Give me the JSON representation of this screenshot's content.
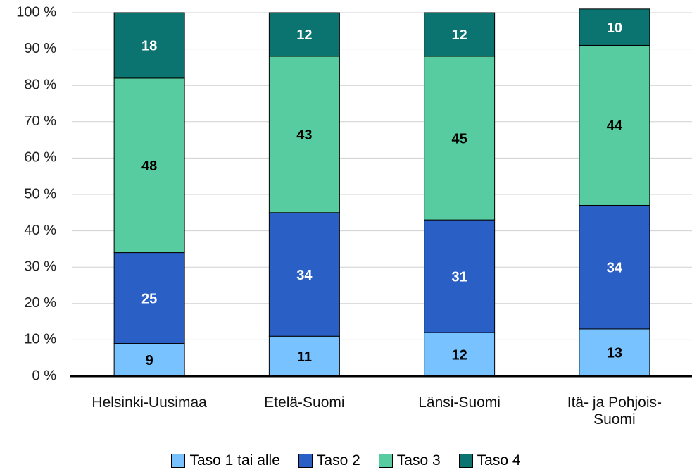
{
  "chart_data": {
    "type": "stacked_bar",
    "categories": [
      "Helsinki-Uusimaa",
      "Etelä-Suomi",
      "Länsi-Suomi",
      "Itä- ja Pohjois-Suomi"
    ],
    "series": [
      {
        "name": "Taso 1 tai alle",
        "color": "#78c2ff",
        "values": [
          9,
          11,
          12,
          13
        ]
      },
      {
        "name": "Taso 2",
        "color": "#2a5fc6",
        "values": [
          25,
          34,
          31,
          34
        ]
      },
      {
        "name": "Taso 3",
        "color": "#57cca0",
        "values": [
          48,
          43,
          45,
          44
        ]
      },
      {
        "name": "Taso 4",
        "color": "#0b7370",
        "values": [
          18,
          12,
          12,
          10
        ]
      }
    ],
    "ylim": [
      0,
      100
    ],
    "yticks": [
      {
        "value": 0,
        "label": "0 %"
      },
      {
        "value": 10,
        "label": "10 %"
      },
      {
        "value": 20,
        "label": "20 %"
      },
      {
        "value": 30,
        "label": "30 %"
      },
      {
        "value": 40,
        "label": "40 %"
      },
      {
        "value": 50,
        "label": "50 %"
      },
      {
        "value": 60,
        "label": "60 %"
      },
      {
        "value": 70,
        "label": "70 %"
      },
      {
        "value": 80,
        "label": "80 %"
      },
      {
        "value": 90,
        "label": "90 %"
      },
      {
        "value": 100,
        "label": "100 %"
      }
    ],
    "grid": true,
    "legend": "bottom"
  }
}
